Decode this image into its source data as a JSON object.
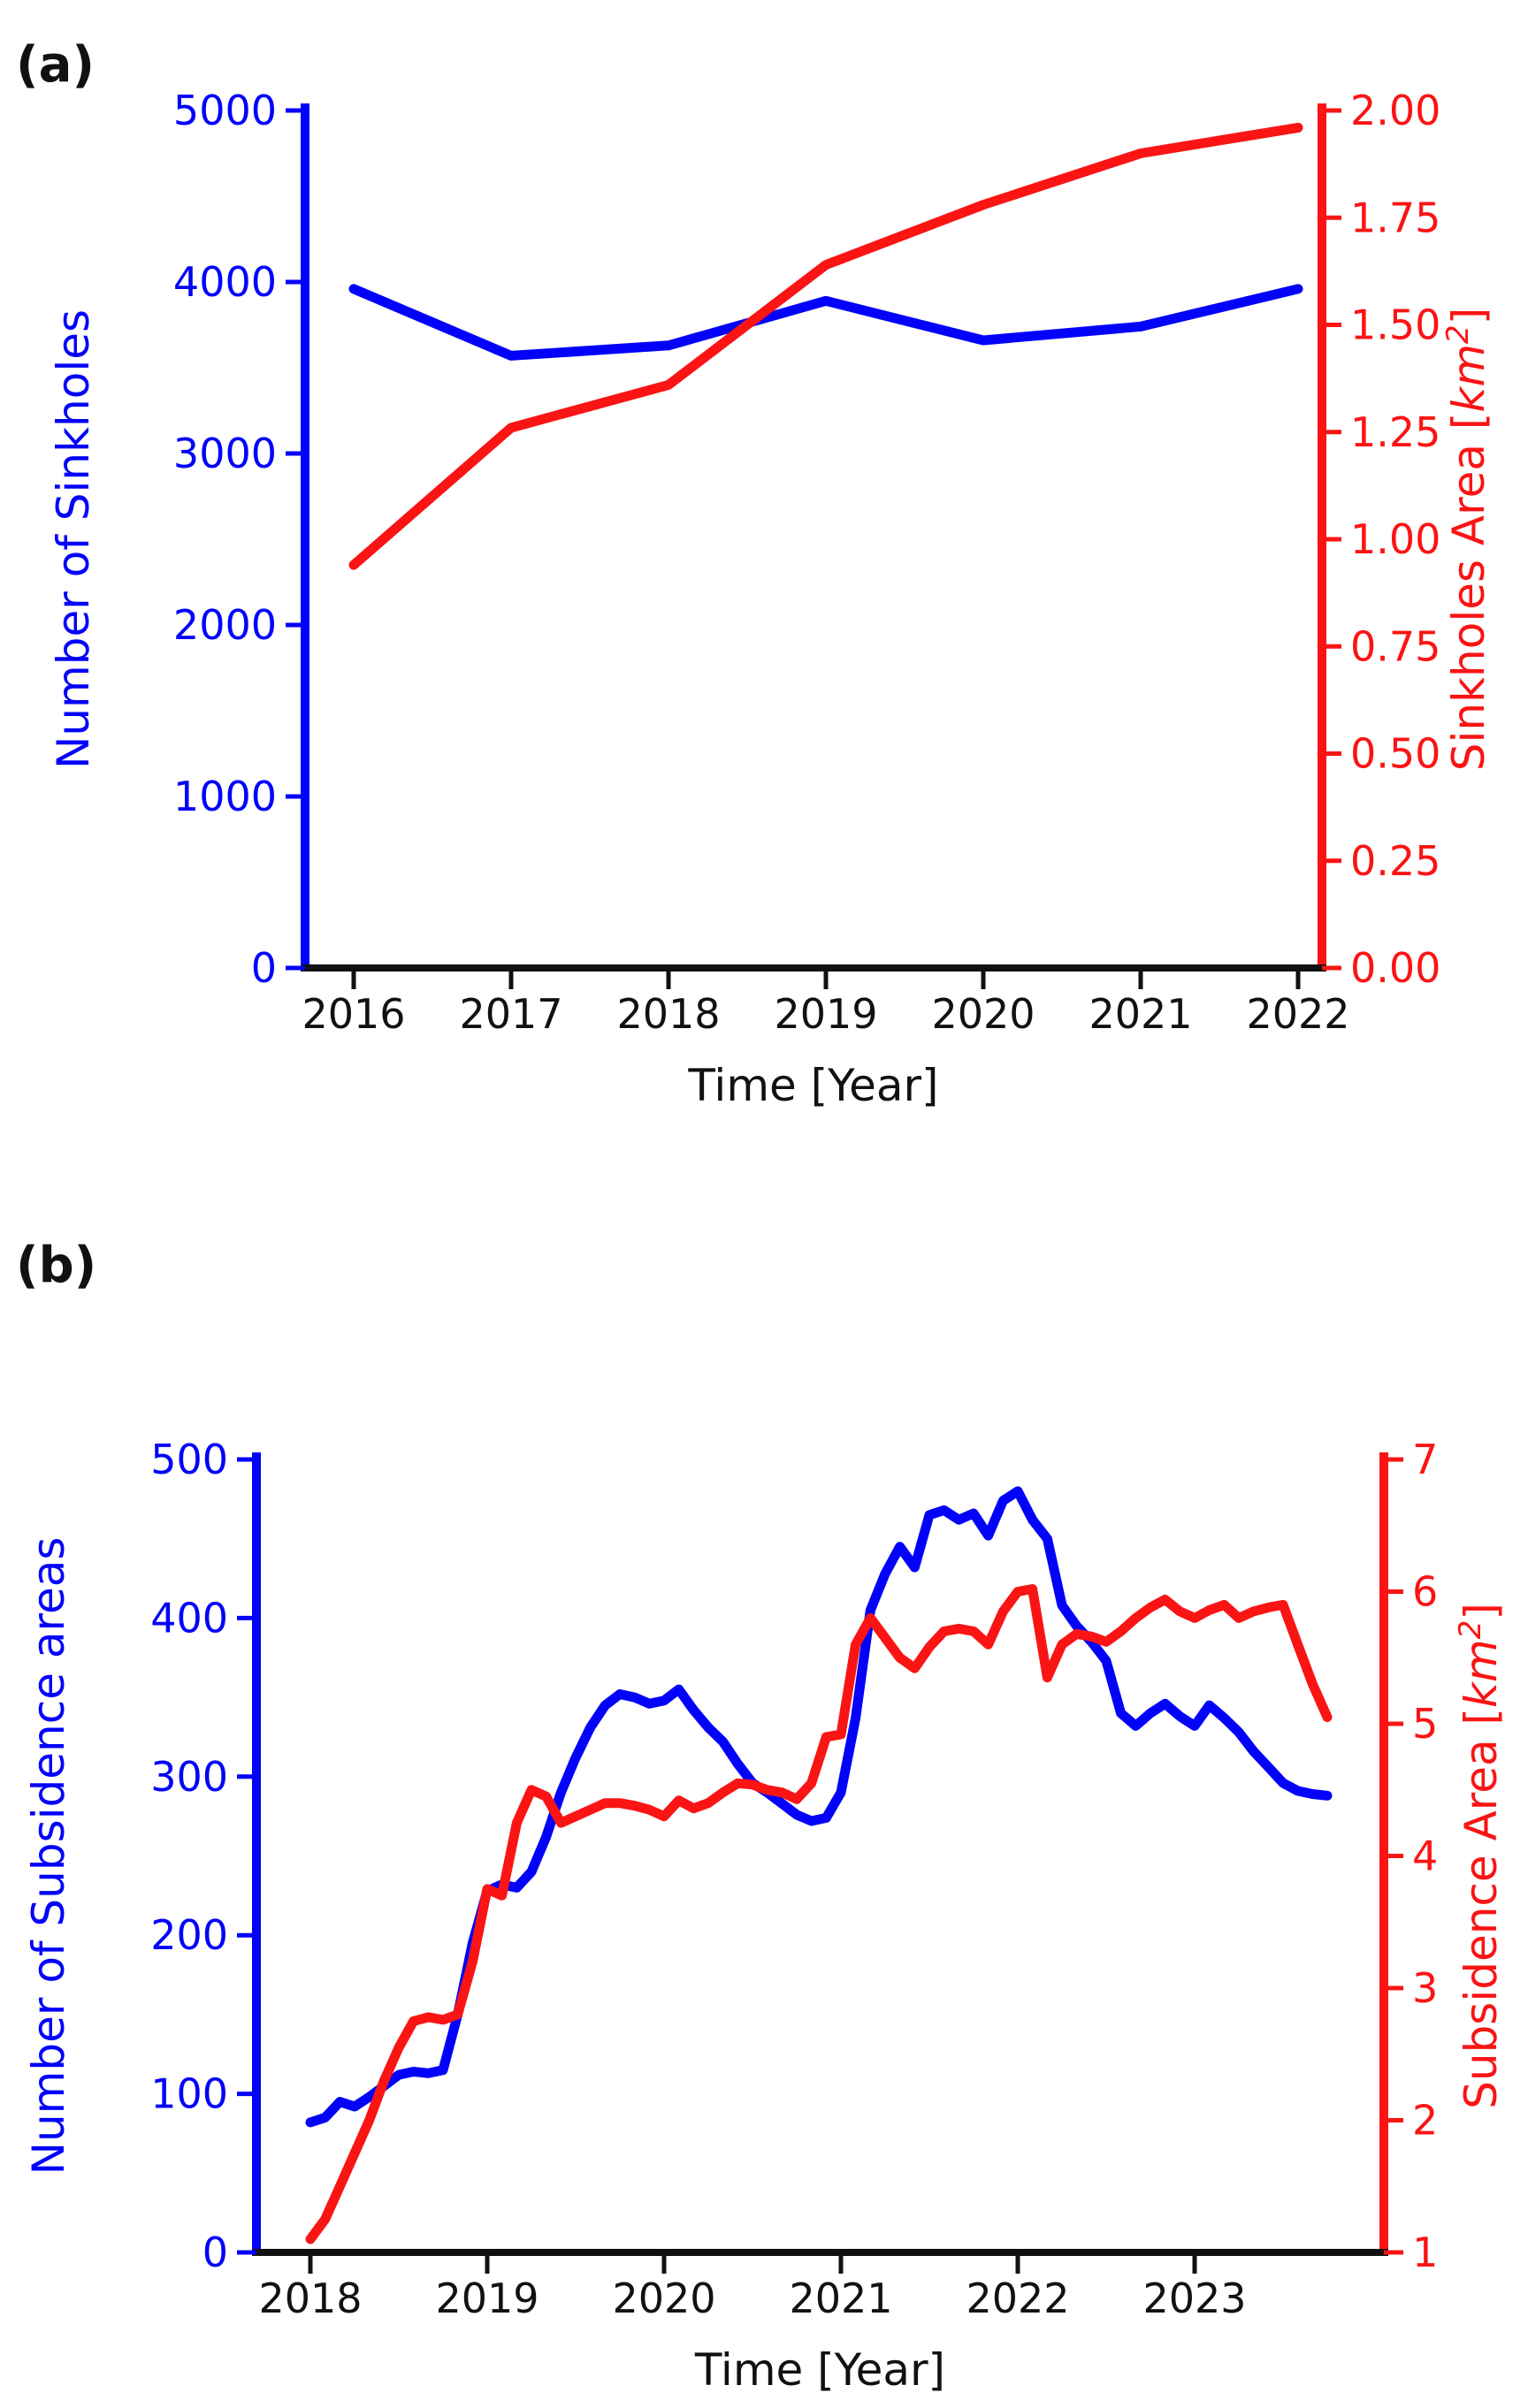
{
  "figure": {
    "background": "#ffffff",
    "text_color": "#111111"
  },
  "chart_data": [
    {
      "panel": "a",
      "panel_label": "(a)",
      "type": "line",
      "xlabel": "Time [Year]",
      "x": [
        2016,
        2017,
        2018,
        2019,
        2020,
        2021,
        2022
      ],
      "xticks": [
        2016,
        2017,
        2018,
        2019,
        2020,
        2021,
        2022
      ],
      "xtick_labels": [
        "2016",
        "2017",
        "2018",
        "2019",
        "2020",
        "2021",
        "2022"
      ],
      "axes": {
        "left": {
          "label": "Number of Sinkholes",
          "color": "#0202fa",
          "min": 0,
          "max": 5000,
          "ticks": [
            0,
            1000,
            2000,
            3000,
            4000,
            5000
          ],
          "tick_labels": [
            "0",
            "1000",
            "2000",
            "3000",
            "4000",
            "5000"
          ]
        },
        "right": {
          "label_prefix": "Sinkholes Area [",
          "label_math": "km",
          "label_sup": "2",
          "label_suffix": "]",
          "color": "#fa1414",
          "min": 0,
          "max": 2,
          "ticks": [
            0,
            0.25,
            0.5,
            0.75,
            1,
            1.25,
            1.5,
            1.75,
            2
          ],
          "tick_labels": [
            "0.00",
            "0.25",
            "0.50",
            "0.75",
            "1.00",
            "1.25",
            "1.50",
            "1.75",
            "2.00"
          ]
        }
      },
      "series": [
        {
          "name": "Number of Sinkholes",
          "axis": "left",
          "color": "#0202fa",
          "values": [
            3960,
            3570,
            3630,
            3890,
            3660,
            3740,
            3960
          ]
        },
        {
          "name": "Sinkholes Area",
          "axis": "right",
          "color": "#fa1414",
          "values": [
            0.94,
            1.26,
            1.36,
            1.64,
            1.78,
            1.9,
            1.96
          ]
        }
      ]
    },
    {
      "panel": "b",
      "panel_label": "(b)",
      "type": "line",
      "xlabel": "Time [Year]",
      "x": [
        2018.0,
        2018.083,
        2018.167,
        2018.25,
        2018.333,
        2018.417,
        2018.5,
        2018.583,
        2018.667,
        2018.75,
        2018.833,
        2018.917,
        2019.0,
        2019.083,
        2019.167,
        2019.25,
        2019.333,
        2019.417,
        2019.5,
        2019.583,
        2019.667,
        2019.75,
        2019.833,
        2019.917,
        2020.0,
        2020.083,
        2020.167,
        2020.25,
        2020.333,
        2020.417,
        2020.5,
        2020.583,
        2020.667,
        2020.75,
        2020.833,
        2020.917,
        2021.0,
        2021.083,
        2021.167,
        2021.25,
        2021.333,
        2021.417,
        2021.5,
        2021.583,
        2021.667,
        2021.75,
        2021.833,
        2021.917,
        2022.0,
        2022.083,
        2022.167,
        2022.25,
        2022.333,
        2022.417,
        2022.5,
        2022.583,
        2022.667,
        2022.75,
        2022.833,
        2022.917,
        2023.0,
        2023.083,
        2023.167,
        2023.25,
        2023.333,
        2023.417,
        2023.5,
        2023.583,
        2023.667,
        2023.75
      ],
      "xticks": [
        2018,
        2019,
        2020,
        2021,
        2022,
        2023
      ],
      "xtick_labels": [
        "2018",
        "2019",
        "2020",
        "2021",
        "2022",
        "2023"
      ],
      "axes": {
        "left": {
          "label": "Number of Subsidence areas",
          "color": "#0202fa",
          "min": 0,
          "max": 500,
          "ticks": [
            0,
            100,
            200,
            300,
            400,
            500
          ],
          "tick_labels": [
            "0",
            "100",
            "200",
            "300",
            "400",
            "500"
          ]
        },
        "right": {
          "label_prefix": "Subsidence Area [",
          "label_math": "km",
          "label_sup": "2",
          "label_suffix": "]",
          "color": "#fa1414",
          "min": 1,
          "max": 7,
          "ticks": [
            1,
            2,
            3,
            4,
            5,
            6,
            7
          ],
          "tick_labels": [
            "1",
            "2",
            "3",
            "4",
            "5",
            "6",
            "7"
          ]
        }
      },
      "series": [
        {
          "name": "Number of Subsidence areas",
          "axis": "left",
          "color": "#0202fa",
          "values": [
            82,
            85,
            95,
            92,
            98,
            105,
            112,
            114,
            113,
            115,
            150,
            195,
            228,
            232,
            230,
            240,
            262,
            290,
            312,
            331,
            345,
            352,
            350,
            346,
            348,
            355,
            342,
            331,
            322,
            308,
            296,
            290,
            283,
            276,
            272,
            274,
            290,
            337,
            405,
            428,
            445,
            432,
            465,
            468,
            462,
            466,
            452,
            474,
            480,
            462,
            450,
            408,
            395,
            385,
            373,
            340,
            332,
            340,
            346,
            338,
            332,
            345,
            337,
            328,
            316,
            306,
            296,
            291,
            289,
            288
          ]
        },
        {
          "name": "Subsidence Area",
          "axis": "right",
          "color": "#fa1414",
          "values": [
            1.1,
            1.25,
            1.5,
            1.75,
            2.0,
            2.3,
            2.55,
            2.75,
            2.78,
            2.76,
            2.8,
            3.2,
            3.75,
            3.7,
            4.25,
            4.5,
            4.45,
            4.25,
            4.3,
            4.35,
            4.4,
            4.4,
            4.38,
            4.35,
            4.3,
            4.42,
            4.36,
            4.4,
            4.48,
            4.55,
            4.54,
            4.5,
            4.48,
            4.43,
            4.55,
            4.9,
            4.92,
            5.6,
            5.8,
            5.65,
            5.5,
            5.42,
            5.58,
            5.7,
            5.72,
            5.7,
            5.6,
            5.85,
            6.0,
            6.02,
            5.35,
            5.6,
            5.68,
            5.66,
            5.62,
            5.7,
            5.8,
            5.88,
            5.94,
            5.85,
            5.8,
            5.86,
            5.9,
            5.8,
            5.85,
            5.88,
            5.9,
            5.6,
            5.3,
            5.05
          ]
        }
      ]
    }
  ]
}
